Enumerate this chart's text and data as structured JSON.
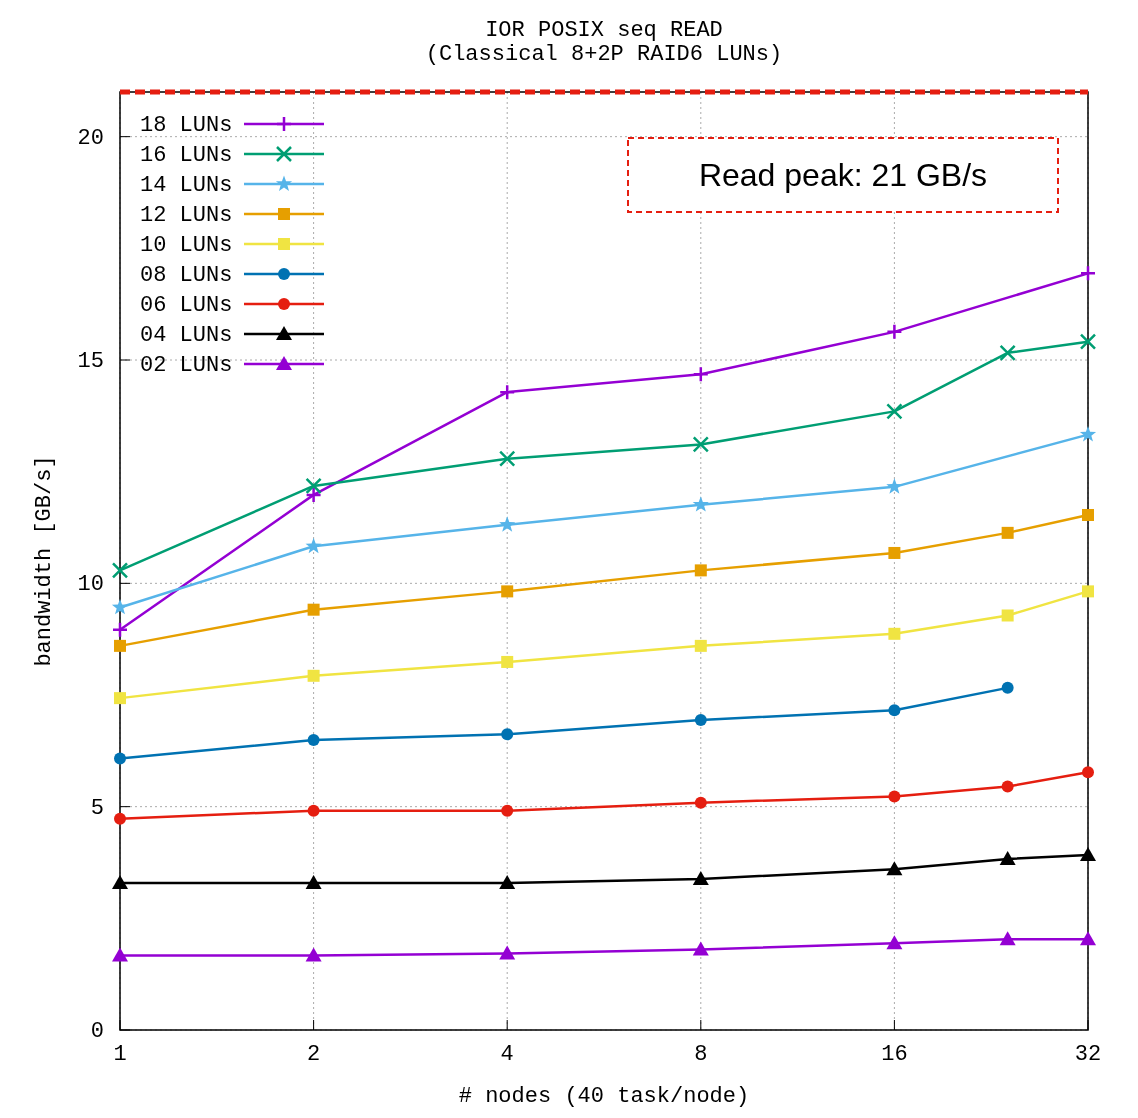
{
  "chart_data": {
    "type": "line",
    "title": "IOR POSIX seq READ",
    "subtitle": "(Classical 8+2P RAID6 LUNs)",
    "xlabel": "# nodes (40 task/node)",
    "ylabel": "bandwidth [GB/s]",
    "log": "x",
    "xlim": [
      1,
      32
    ],
    "xticks": [
      1,
      2,
      4,
      8,
      16,
      32
    ],
    "ylim": [
      0,
      21
    ],
    "yticks": [
      0,
      5,
      10,
      15,
      20
    ],
    "grid": true,
    "legend": "top left",
    "line_style": "solid",
    "ref_lines": [
      {
        "axis": "y",
        "value": 21,
        "label": "Read peak: 21 GB/s",
        "color": "#e51e10",
        "line_style": "dashed"
      }
    ],
    "series": [
      {
        "name": "18 LUNs",
        "color": "#9400d3",
        "marker": "plus",
        "x": [
          1,
          2,
          4,
          8,
          16,
          32
        ],
        "values": [
          8.96,
          11.98,
          14.28,
          14.68,
          15.63,
          16.94
        ]
      },
      {
        "name": "16 LUNs",
        "color": "#009e73",
        "marker": "cross",
        "x": [
          1,
          2,
          4,
          8,
          16,
          24,
          32
        ],
        "values": [
          10.29,
          12.18,
          12.79,
          13.11,
          13.85,
          15.16,
          15.41
        ]
      },
      {
        "name": "14 LUNs",
        "color": "#56b4e9",
        "marker": "star",
        "x": [
          1,
          2,
          4,
          8,
          16,
          32
        ],
        "values": [
          9.46,
          10.83,
          11.31,
          11.76,
          12.16,
          13.33
        ]
      },
      {
        "name": "12 LUNs",
        "color": "#e69f00",
        "marker": "square",
        "x": [
          1,
          2,
          4,
          8,
          16,
          24,
          32
        ],
        "values": [
          8.6,
          9.41,
          9.82,
          10.29,
          10.68,
          11.13,
          11.53
        ]
      },
      {
        "name": "10 LUNs",
        "color": "#f0e442",
        "marker": "square",
        "x": [
          1,
          2,
          4,
          8,
          16,
          24,
          32
        ],
        "values": [
          7.43,
          7.93,
          8.24,
          8.6,
          8.87,
          9.28,
          9.82
        ]
      },
      {
        "name": "08 LUNs",
        "color": "#0072b2",
        "marker": "circle",
        "x": [
          1,
          2,
          4,
          8,
          16,
          24
        ],
        "values": [
          6.08,
          6.49,
          6.62,
          6.94,
          7.16,
          7.66
        ]
      },
      {
        "name": "06 LUNs",
        "color": "#e51e10",
        "marker": "circle",
        "x": [
          1,
          2,
          4,
          8,
          16,
          24,
          32
        ],
        "values": [
          4.73,
          4.91,
          4.91,
          5.09,
          5.23,
          5.45,
          5.77
        ]
      },
      {
        "name": "04 LUNs",
        "color": "#000000",
        "marker": "triangle",
        "x": [
          1,
          2,
          4,
          8,
          16,
          24,
          32
        ],
        "values": [
          3.29,
          3.29,
          3.29,
          3.38,
          3.6,
          3.83,
          3.92
        ]
      },
      {
        "name": "02 LUNs",
        "color": "#9400d3",
        "marker": "triangle",
        "x": [
          1,
          2,
          4,
          8,
          16,
          24,
          32
        ],
        "values": [
          1.67,
          1.67,
          1.71,
          1.8,
          1.94,
          2.03,
          2.03
        ]
      }
    ]
  }
}
